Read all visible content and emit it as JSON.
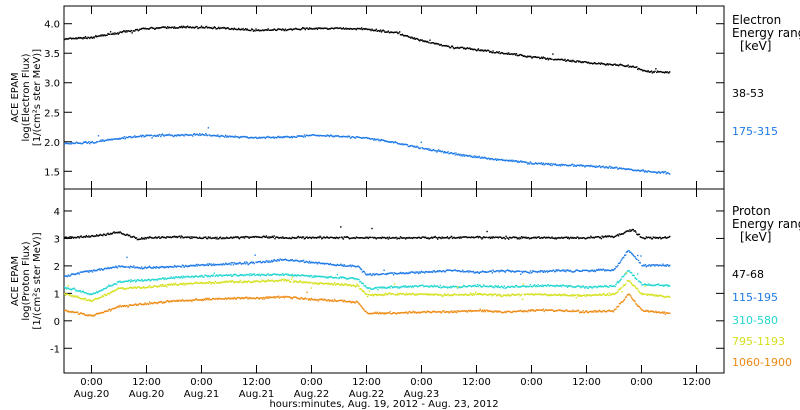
{
  "chart_data": [
    {
      "type": "scatter",
      "panel": "electron",
      "ylabel": [
        "ACE EPAM",
        "log(Electron Flux)",
        "[1/(cm²s ster MeV)]"
      ],
      "ylim": [
        1.2,
        4.3
      ],
      "yticks": [
        1.5,
        2.0,
        2.5,
        3.0,
        3.5,
        4.0
      ],
      "ytick_labels": [
        "1.5",
        "2.0",
        "2.5",
        "3.0",
        "3.5",
        "4.0"
      ],
      "legend_title": [
        "Electron",
        "Energy ranges",
        "[keV]"
      ],
      "series": [
        {
          "name": "38-53",
          "color": "#000000",
          "points": [
            [
              -6,
              3.75
            ],
            [
              0,
              3.78
            ],
            [
              6,
              3.86
            ],
            [
              12,
              3.93
            ],
            [
              18,
              3.95
            ],
            [
              24,
              3.95
            ],
            [
              30,
              3.93
            ],
            [
              36,
              3.9
            ],
            [
              42,
              3.91
            ],
            [
              48,
              3.93
            ],
            [
              54,
              3.93
            ],
            [
              60,
              3.92
            ],
            [
              66,
              3.86
            ],
            [
              72,
              3.72
            ],
            [
              78,
              3.62
            ],
            [
              84,
              3.57
            ],
            [
              90,
              3.51
            ],
            [
              96,
              3.45
            ],
            [
              102,
              3.4
            ],
            [
              108,
              3.35
            ],
            [
              114,
              3.32
            ],
            [
              118,
              3.28
            ],
            [
              121,
              3.2
            ],
            [
              126,
              3.19
            ]
          ]
        },
        {
          "name": "175-315",
          "color": "#1e7ae6",
          "points": [
            [
              -6,
              1.98
            ],
            [
              0,
              2.0
            ],
            [
              6,
              2.07
            ],
            [
              12,
              2.12
            ],
            [
              18,
              2.12
            ],
            [
              24,
              2.13
            ],
            [
              30,
              2.1
            ],
            [
              36,
              2.08
            ],
            [
              42,
              2.09
            ],
            [
              48,
              2.12
            ],
            [
              54,
              2.11
            ],
            [
              60,
              2.07
            ],
            [
              66,
              2.0
            ],
            [
              72,
              1.9
            ],
            [
              78,
              1.82
            ],
            [
              84,
              1.75
            ],
            [
              90,
              1.7
            ],
            [
              96,
              1.65
            ],
            [
              102,
              1.62
            ],
            [
              108,
              1.6
            ],
            [
              114,
              1.57
            ],
            [
              120,
              1.52
            ],
            [
              126,
              1.48
            ]
          ]
        }
      ]
    },
    {
      "type": "scatter",
      "panel": "proton",
      "ylabel": [
        "ACE EPAM",
        "log(Proton Flux)",
        "[1/(cm²s ster MeV)]"
      ],
      "ylim": [
        -1.9,
        4.8
      ],
      "yticks": [
        -1,
        0,
        1,
        2,
        3,
        4
      ],
      "ytick_labels": [
        "-1",
        "0",
        "1",
        "2",
        "3",
        "4"
      ],
      "legend_title": [
        "Proton",
        "Energy ranges",
        "[keV]"
      ],
      "series": [
        {
          "name": "47-68",
          "color": "#000000",
          "points": [
            [
              -6,
              3.05
            ],
            [
              0,
              3.1
            ],
            [
              6,
              3.25
            ],
            [
              10,
              3.0
            ],
            [
              12,
              3.05
            ],
            [
              18,
              3.08
            ],
            [
              24,
              3.05
            ],
            [
              30,
              3.05
            ],
            [
              36,
              3.08
            ],
            [
              42,
              3.05
            ],
            [
              48,
              3.06
            ],
            [
              54,
              3.05
            ],
            [
              60,
              3.05
            ],
            [
              66,
              3.04
            ],
            [
              72,
              3.05
            ],
            [
              78,
              3.05
            ],
            [
              84,
              3.06
            ],
            [
              90,
              3.05
            ],
            [
              96,
              3.05
            ],
            [
              102,
              3.05
            ],
            [
              108,
              3.05
            ],
            [
              114,
              3.1
            ],
            [
              118,
              3.35
            ],
            [
              120,
              3.05
            ],
            [
              126,
              3.05
            ]
          ]
        },
        {
          "name": "115-195",
          "color": "#1e7ae6",
          "points": [
            [
              -6,
              1.65
            ],
            [
              -2,
              1.8
            ],
            [
              0,
              1.85
            ],
            [
              6,
              2.0
            ],
            [
              12,
              1.95
            ],
            [
              18,
              2.0
            ],
            [
              24,
              2.05
            ],
            [
              30,
              2.1
            ],
            [
              36,
              2.15
            ],
            [
              42,
              2.25
            ],
            [
              48,
              2.15
            ],
            [
              54,
              2.05
            ],
            [
              58,
              2.0
            ],
            [
              60,
              1.7
            ],
            [
              66,
              1.75
            ],
            [
              72,
              1.8
            ],
            [
              78,
              1.85
            ],
            [
              84,
              1.8
            ],
            [
              90,
              1.85
            ],
            [
              96,
              1.8
            ],
            [
              102,
              1.85
            ],
            [
              108,
              1.85
            ],
            [
              114,
              1.9
            ],
            [
              117,
              2.6
            ],
            [
              120,
              2.05
            ],
            [
              126,
              2.05
            ]
          ]
        },
        {
          "name": "310-580",
          "color": "#22d6d0",
          "points": [
            [
              -6,
              1.25
            ],
            [
              0,
              1.0
            ],
            [
              6,
              1.45
            ],
            [
              12,
              1.5
            ],
            [
              18,
              1.6
            ],
            [
              24,
              1.65
            ],
            [
              30,
              1.68
            ],
            [
              36,
              1.7
            ],
            [
              42,
              1.72
            ],
            [
              48,
              1.65
            ],
            [
              54,
              1.6
            ],
            [
              58,
              1.55
            ],
            [
              60,
              1.2
            ],
            [
              66,
              1.25
            ],
            [
              72,
              1.3
            ],
            [
              78,
              1.25
            ],
            [
              84,
              1.3
            ],
            [
              90,
              1.25
            ],
            [
              96,
              1.3
            ],
            [
              102,
              1.3
            ],
            [
              108,
              1.25
            ],
            [
              114,
              1.3
            ],
            [
              117,
              1.85
            ],
            [
              120,
              1.35
            ],
            [
              126,
              1.3
            ]
          ]
        },
        {
          "name": "795-1193",
          "color": "#d4e01c",
          "points": [
            [
              -6,
              1.0
            ],
            [
              0,
              0.75
            ],
            [
              6,
              1.2
            ],
            [
              12,
              1.25
            ],
            [
              18,
              1.35
            ],
            [
              24,
              1.4
            ],
            [
              30,
              1.45
            ],
            [
              36,
              1.45
            ],
            [
              42,
              1.5
            ],
            [
              48,
              1.4
            ],
            [
              54,
              1.35
            ],
            [
              58,
              1.3
            ],
            [
              60,
              0.95
            ],
            [
              66,
              1.0
            ],
            [
              72,
              1.0
            ],
            [
              78,
              0.95
            ],
            [
              84,
              1.0
            ],
            [
              90,
              0.95
            ],
            [
              96,
              1.0
            ],
            [
              102,
              0.95
            ],
            [
              108,
              0.95
            ],
            [
              114,
              1.0
            ],
            [
              117,
              1.5
            ],
            [
              120,
              1.0
            ],
            [
              126,
              0.9
            ]
          ]
        },
        {
          "name": "1060-1900",
          "color": "#ee8a12",
          "points": [
            [
              -6,
              0.4
            ],
            [
              0,
              0.2
            ],
            [
              6,
              0.55
            ],
            [
              12,
              0.65
            ],
            [
              18,
              0.75
            ],
            [
              24,
              0.8
            ],
            [
              30,
              0.85
            ],
            [
              36,
              0.85
            ],
            [
              42,
              0.9
            ],
            [
              48,
              0.8
            ],
            [
              54,
              0.75
            ],
            [
              58,
              0.7
            ],
            [
              60,
              0.3
            ],
            [
              66,
              0.3
            ],
            [
              72,
              0.35
            ],
            [
              78,
              0.35
            ],
            [
              84,
              0.4
            ],
            [
              90,
              0.35
            ],
            [
              96,
              0.4
            ],
            [
              102,
              0.4
            ],
            [
              108,
              0.35
            ],
            [
              114,
              0.4
            ],
            [
              117,
              1.0
            ],
            [
              120,
              0.4
            ],
            [
              126,
              0.3
            ]
          ]
        }
      ]
    }
  ],
  "xaxis": {
    "xlim": [
      -6,
      138
    ],
    "ticks": [
      0,
      12,
      24,
      36,
      48,
      60,
      72,
      84,
      96,
      108,
      120,
      132
    ],
    "tick_time_labels": [
      "0:00",
      "12:00",
      "0:00",
      "12:00",
      "0:00",
      "12:00",
      "0:00",
      "12:00",
      "0:00",
      "12:00",
      "0:00",
      "12:00"
    ],
    "label_ticks": [
      0,
      12,
      24,
      36,
      48,
      60,
      72,
      84,
      96,
      108,
      120,
      132
    ],
    "date_labels": [
      "Aug.20",
      "Aug.20",
      "Aug.21",
      "Aug.21",
      "Aug.22",
      "Aug.22",
      "Aug.23",
      "",
      "",
      "",
      "",
      ""
    ],
    "xlabel": "hours:minutes, Aug. 19, 2012 - Aug. 23, 2012"
  }
}
